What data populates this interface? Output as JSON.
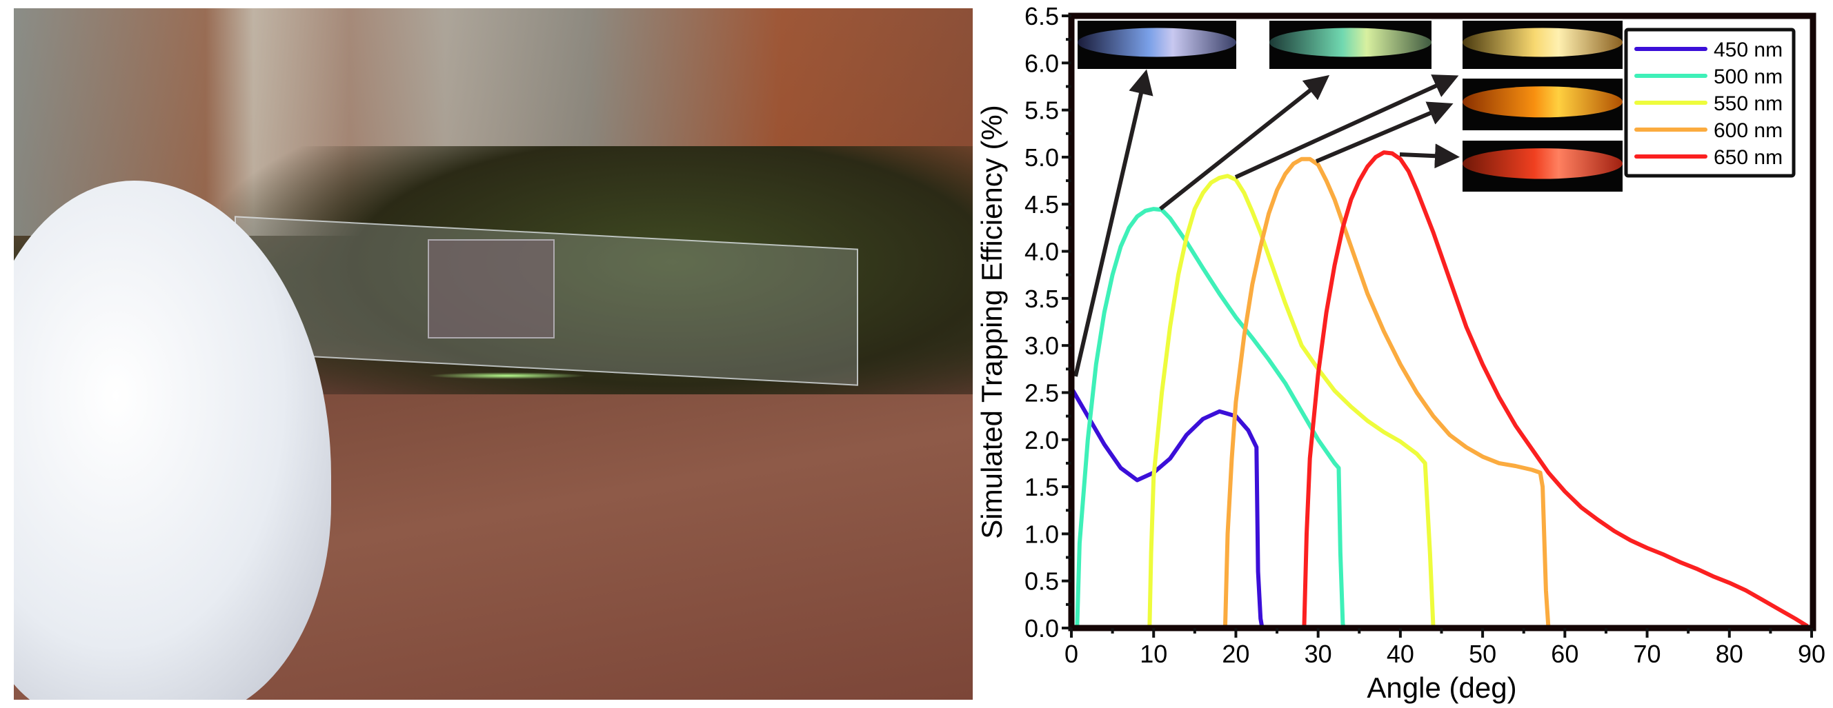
{
  "chart_data": {
    "type": "line",
    "title": "",
    "xlabel": "Angle (deg)",
    "ylabel": "Simulated Trapping Efficiency (%)",
    "xlim": [
      0,
      90
    ],
    "ylim": [
      0,
      6.5
    ],
    "xticks": [
      "0",
      "10",
      "20",
      "30",
      "40",
      "50",
      "60",
      "70",
      "80",
      "90"
    ],
    "yticks": [
      "0.0",
      "0.5",
      "1.0",
      "1.5",
      "2.0",
      "2.5",
      "3.0",
      "3.5",
      "4.0",
      "4.5",
      "5.0",
      "5.5",
      "6.0",
      "6.5"
    ],
    "grid": false,
    "legend_position": "top-right",
    "series": [
      {
        "name": "450 nm",
        "color": "#3b0fd8",
        "points": [
          [
            0,
            2.55
          ],
          [
            2,
            2.25
          ],
          [
            4,
            1.95
          ],
          [
            6,
            1.7
          ],
          [
            8,
            1.57
          ],
          [
            10,
            1.65
          ],
          [
            12,
            1.8
          ],
          [
            14,
            2.05
          ],
          [
            16,
            2.22
          ],
          [
            18,
            2.3
          ],
          [
            20,
            2.25
          ],
          [
            21.5,
            2.1
          ],
          [
            22.5,
            1.92
          ],
          [
            22.7,
            0.6
          ],
          [
            23,
            0.1
          ],
          [
            23.2,
            0
          ]
        ]
      },
      {
        "name": "500 nm",
        "color": "#3ef0b8",
        "points": [
          [
            0.7,
            0
          ],
          [
            1,
            0.9
          ],
          [
            2,
            2.0
          ],
          [
            3,
            2.8
          ],
          [
            4,
            3.35
          ],
          [
            5,
            3.75
          ],
          [
            6,
            4.05
          ],
          [
            7,
            4.25
          ],
          [
            8,
            4.37
          ],
          [
            9,
            4.43
          ],
          [
            10,
            4.45
          ],
          [
            11,
            4.44
          ],
          [
            12,
            4.35
          ],
          [
            14,
            4.1
          ],
          [
            16,
            3.82
          ],
          [
            18,
            3.55
          ],
          [
            20,
            3.3
          ],
          [
            22,
            3.08
          ],
          [
            24,
            2.85
          ],
          [
            26,
            2.6
          ],
          [
            28,
            2.3
          ],
          [
            30,
            2.0
          ],
          [
            32,
            1.75
          ],
          [
            32.5,
            1.7
          ],
          [
            32.7,
            0.8
          ],
          [
            33,
            0.05
          ],
          [
            33.1,
            0
          ]
        ]
      },
      {
        "name": "550 nm",
        "color": "#eefc3c",
        "points": [
          [
            9.5,
            0
          ],
          [
            9.7,
            0.8
          ],
          [
            10,
            1.6
          ],
          [
            11,
            2.5
          ],
          [
            12,
            3.2
          ],
          [
            13,
            3.75
          ],
          [
            14,
            4.15
          ],
          [
            15,
            4.45
          ],
          [
            16,
            4.62
          ],
          [
            17,
            4.73
          ],
          [
            18,
            4.78
          ],
          [
            19,
            4.8
          ],
          [
            20,
            4.76
          ],
          [
            21,
            4.62
          ],
          [
            22,
            4.42
          ],
          [
            23,
            4.2
          ],
          [
            24,
            3.95
          ],
          [
            26,
            3.45
          ],
          [
            28,
            3.0
          ],
          [
            30,
            2.75
          ],
          [
            32,
            2.52
          ],
          [
            34,
            2.35
          ],
          [
            36,
            2.2
          ],
          [
            38,
            2.08
          ],
          [
            40,
            1.98
          ],
          [
            42,
            1.85
          ],
          [
            43,
            1.75
          ],
          [
            43.6,
            0.8
          ],
          [
            44,
            0
          ]
        ]
      },
      {
        "name": "600 nm",
        "color": "#fbab3f",
        "points": [
          [
            18.7,
            0
          ],
          [
            19,
            1.0
          ],
          [
            19.5,
            1.8
          ],
          [
            20,
            2.4
          ],
          [
            21,
            3.1
          ],
          [
            22,
            3.65
          ],
          [
            23,
            4.05
          ],
          [
            24,
            4.4
          ],
          [
            25,
            4.65
          ],
          [
            26,
            4.82
          ],
          [
            27,
            4.93
          ],
          [
            28,
            4.98
          ],
          [
            29,
            4.98
          ],
          [
            30,
            4.92
          ],
          [
            31,
            4.75
          ],
          [
            32,
            4.55
          ],
          [
            34,
            4.05
          ],
          [
            36,
            3.55
          ],
          [
            38,
            3.15
          ],
          [
            40,
            2.8
          ],
          [
            42,
            2.5
          ],
          [
            44,
            2.25
          ],
          [
            46,
            2.05
          ],
          [
            48,
            1.92
          ],
          [
            50,
            1.82
          ],
          [
            52,
            1.75
          ],
          [
            54,
            1.72
          ],
          [
            56,
            1.68
          ],
          [
            57,
            1.65
          ],
          [
            57.3,
            1.5
          ],
          [
            57.7,
            0.4
          ],
          [
            58,
            0
          ]
        ]
      },
      {
        "name": "650 nm",
        "color": "#fb2020",
        "points": [
          [
            28.3,
            0
          ],
          [
            28.6,
            1.0
          ],
          [
            29,
            1.8
          ],
          [
            30,
            2.7
          ],
          [
            31,
            3.35
          ],
          [
            32,
            3.85
          ],
          [
            33,
            4.25
          ],
          [
            34,
            4.55
          ],
          [
            35,
            4.75
          ],
          [
            36,
            4.9
          ],
          [
            37,
            5.0
          ],
          [
            38,
            5.05
          ],
          [
            39,
            5.04
          ],
          [
            40,
            4.98
          ],
          [
            41,
            4.85
          ],
          [
            42,
            4.65
          ],
          [
            44,
            4.2
          ],
          [
            46,
            3.7
          ],
          [
            48,
            3.2
          ],
          [
            50,
            2.8
          ],
          [
            52,
            2.45
          ],
          [
            54,
            2.15
          ],
          [
            56,
            1.9
          ],
          [
            58,
            1.65
          ],
          [
            60,
            1.45
          ],
          [
            62,
            1.28
          ],
          [
            64,
            1.15
          ],
          [
            66,
            1.03
          ],
          [
            68,
            0.93
          ],
          [
            70,
            0.85
          ],
          [
            72,
            0.78
          ],
          [
            74,
            0.7
          ],
          [
            76,
            0.63
          ],
          [
            78,
            0.55
          ],
          [
            80,
            0.48
          ],
          [
            82,
            0.4
          ],
          [
            84,
            0.3
          ],
          [
            86,
            0.2
          ],
          [
            88,
            0.1
          ],
          [
            89.5,
            0.02
          ]
        ]
      }
    ],
    "insets": [
      {
        "series": "450 nm",
        "colors": [
          "#1a1c3a",
          "#7aa0e8",
          "#c8c8f0",
          "#3a4068"
        ]
      },
      {
        "series": "500 nm",
        "colors": [
          "#1c3a36",
          "#70d8b0",
          "#d8f0a0",
          "#405a40"
        ]
      },
      {
        "series": "550 nm",
        "colors": [
          "#4a3a10",
          "#f8d870",
          "#fff0b0",
          "#8a6020"
        ]
      },
      {
        "series": "600 nm",
        "colors": [
          "#8a3000",
          "#f89010",
          "#ffd040",
          "#b05000"
        ]
      },
      {
        "series": "650 nm",
        "colors": [
          "#701808",
          "#f04020",
          "#ff8060",
          "#a02010"
        ]
      }
    ]
  }
}
